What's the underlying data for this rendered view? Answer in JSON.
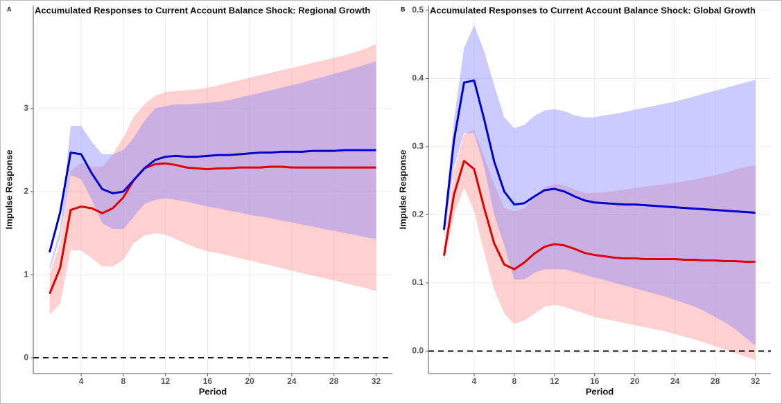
{
  "chart_data": [
    {
      "type": "line",
      "panel_label": "A",
      "title": "Accumulated Responses to Current Account Balance Shock: Regional Growth",
      "x_label": "Period",
      "y_label": "Impulse Response",
      "x": [
        1,
        2,
        3,
        4,
        5,
        6,
        7,
        8,
        9,
        10,
        11,
        12,
        13,
        14,
        15,
        16,
        17,
        18,
        19,
        20,
        21,
        22,
        23,
        24,
        25,
        26,
        27,
        28,
        29,
        30,
        31,
        32
      ],
      "xlim": [
        -0.55,
        33.55
      ],
      "xticks": [
        4,
        8,
        12,
        16,
        20,
        24,
        28,
        32
      ],
      "ylim": [
        -0.19,
        4.24
      ],
      "yticks": [
        0,
        1,
        2,
        3
      ],
      "grid": true,
      "hline": 0,
      "series": [
        {
          "color": "#dd0000",
          "band_color": "#ff8a8a",
          "values": [
            0.77,
            1.08,
            1.78,
            1.82,
            1.8,
            1.74,
            1.8,
            1.93,
            2.14,
            2.28,
            2.33,
            2.34,
            2.32,
            2.29,
            2.28,
            2.27,
            2.28,
            2.28,
            2.29,
            2.29,
            2.29,
            2.3,
            2.3,
            2.29,
            2.29,
            2.29,
            2.29,
            2.29,
            2.29,
            2.29,
            2.29,
            2.29
          ],
          "lower": [
            0.52,
            0.65,
            1.3,
            1.29,
            1.2,
            1.1,
            1.1,
            1.18,
            1.38,
            1.47,
            1.5,
            1.48,
            1.43,
            1.37,
            1.32,
            1.28,
            1.26,
            1.23,
            1.2,
            1.17,
            1.14,
            1.11,
            1.08,
            1.05,
            1.02,
            0.99,
            0.96,
            0.93,
            0.9,
            0.87,
            0.84,
            0.8
          ],
          "upper": [
            1.0,
            1.4,
            2.25,
            2.35,
            2.3,
            2.3,
            2.45,
            2.65,
            2.9,
            3.05,
            3.15,
            3.2,
            3.21,
            3.22,
            3.23,
            3.25,
            3.28,
            3.31,
            3.34,
            3.37,
            3.4,
            3.43,
            3.46,
            3.49,
            3.52,
            3.55,
            3.58,
            3.61,
            3.64,
            3.68,
            3.72,
            3.78
          ]
        },
        {
          "color": "#0000cc",
          "band_color": "#7d7dff",
          "values": [
            1.27,
            1.75,
            2.47,
            2.45,
            2.22,
            2.03,
            1.98,
            2.0,
            2.14,
            2.28,
            2.38,
            2.42,
            2.43,
            2.42,
            2.42,
            2.43,
            2.44,
            2.44,
            2.45,
            2.46,
            2.47,
            2.47,
            2.48,
            2.48,
            2.48,
            2.49,
            2.49,
            2.49,
            2.5,
            2.5,
            2.5,
            2.5
          ],
          "lower": [
            1.05,
            1.45,
            2.2,
            2.15,
            1.9,
            1.62,
            1.55,
            1.55,
            1.7,
            1.85,
            1.9,
            1.92,
            1.9,
            1.88,
            1.85,
            1.82,
            1.8,
            1.77,
            1.75,
            1.72,
            1.7,
            1.68,
            1.65,
            1.63,
            1.6,
            1.58,
            1.55,
            1.53,
            1.5,
            1.48,
            1.45,
            1.43
          ],
          "upper": [
            1.1,
            1.55,
            2.79,
            2.79,
            2.6,
            2.45,
            2.45,
            2.5,
            2.65,
            2.85,
            3.0,
            3.03,
            3.05,
            3.05,
            3.06,
            3.07,
            3.08,
            3.1,
            3.13,
            3.16,
            3.19,
            3.22,
            3.25,
            3.28,
            3.31,
            3.35,
            3.38,
            3.42,
            3.45,
            3.49,
            3.53,
            3.57
          ]
        }
      ]
    },
    {
      "type": "line",
      "panel_label": "B",
      "title": "Accumulated Responses to Current Account Balance Shock: Global Growth",
      "x_label": "Period",
      "y_label": "Impulse Response",
      "x": [
        1,
        2,
        3,
        4,
        5,
        6,
        7,
        8,
        9,
        10,
        11,
        12,
        13,
        14,
        15,
        16,
        17,
        18,
        19,
        20,
        21,
        22,
        23,
        24,
        25,
        26,
        27,
        28,
        29,
        30,
        31,
        32
      ],
      "xlim": [
        -0.55,
        33.55
      ],
      "xticks": [
        4,
        8,
        12,
        16,
        20,
        24,
        28,
        32
      ],
      "ylim": [
        -0.033,
        0.507
      ],
      "yticks": [
        {
          "value": 0,
          "label": "0.0"
        },
        0.1,
        0.2,
        0.3,
        0.4,
        0.5
      ],
      "grid": true,
      "hline": 0,
      "series": [
        {
          "color": "#dd0000",
          "band_color": "#ff8a8a",
          "values": [
            0.14,
            0.23,
            0.279,
            0.267,
            0.21,
            0.158,
            0.127,
            0.12,
            0.13,
            0.143,
            0.153,
            0.157,
            0.155,
            0.15,
            0.144,
            0.141,
            0.139,
            0.137,
            0.136,
            0.136,
            0.135,
            0.135,
            0.135,
            0.135,
            0.134,
            0.134,
            0.133,
            0.133,
            0.132,
            0.132,
            0.131,
            0.131
          ],
          "lower": [
            0.13,
            0.2,
            0.24,
            0.205,
            0.145,
            0.09,
            0.055,
            0.04,
            0.045,
            0.055,
            0.065,
            0.068,
            0.065,
            0.06,
            0.055,
            0.05,
            0.047,
            0.044,
            0.041,
            0.038,
            0.035,
            0.032,
            0.029,
            0.025,
            0.021,
            0.017,
            0.012,
            0.007,
            0.002,
            -0.003,
            -0.008,
            -0.013
          ],
          "upper": [
            0.15,
            0.265,
            0.318,
            0.325,
            0.285,
            0.245,
            0.21,
            0.205,
            0.21,
            0.225,
            0.24,
            0.245,
            0.243,
            0.237,
            0.232,
            0.232,
            0.233,
            0.235,
            0.237,
            0.239,
            0.241,
            0.243,
            0.245,
            0.247,
            0.249,
            0.252,
            0.255,
            0.258,
            0.262,
            0.266,
            0.27,
            0.273
          ]
        },
        {
          "color": "#0000cc",
          "band_color": "#7d7dff",
          "values": [
            0.178,
            0.31,
            0.394,
            0.397,
            0.34,
            0.278,
            0.234,
            0.215,
            0.217,
            0.227,
            0.236,
            0.238,
            0.234,
            0.227,
            0.221,
            0.218,
            0.217,
            0.216,
            0.215,
            0.215,
            0.214,
            0.213,
            0.212,
            0.211,
            0.21,
            0.209,
            0.208,
            0.207,
            0.206,
            0.205,
            0.204,
            0.203
          ],
          "lower": [
            0.165,
            0.27,
            0.32,
            0.32,
            0.27,
            0.2,
            0.155,
            0.105,
            0.105,
            0.115,
            0.12,
            0.12,
            0.12,
            0.116,
            0.112,
            0.108,
            0.104,
            0.1,
            0.096,
            0.092,
            0.088,
            0.084,
            0.08,
            0.075,
            0.07,
            0.065,
            0.058,
            0.05,
            0.042,
            0.032,
            0.02,
            0.008
          ],
          "upper": [
            0.19,
            0.34,
            0.445,
            0.478,
            0.44,
            0.39,
            0.343,
            0.327,
            0.332,
            0.345,
            0.353,
            0.355,
            0.352,
            0.346,
            0.343,
            0.343,
            0.346,
            0.348,
            0.351,
            0.354,
            0.357,
            0.36,
            0.363,
            0.366,
            0.37,
            0.374,
            0.378,
            0.382,
            0.386,
            0.39,
            0.394,
            0.398
          ]
        }
      ]
    }
  ]
}
